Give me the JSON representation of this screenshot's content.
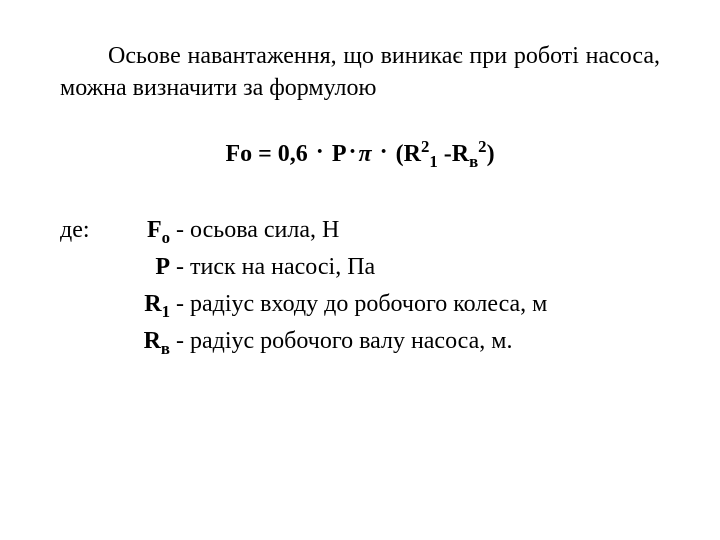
{
  "colors": {
    "background": "#ffffff",
    "text": "#000000"
  },
  "typography": {
    "family": "Times New Roman",
    "body_fontsize_pt": 18,
    "formula_fontsize_pt": 18,
    "formula_weight": "bold"
  },
  "intro": "Осьове навантаження, що виникає при роботі насоса, можна визначити за формулою",
  "formula": {
    "lhs_sym": "Fo",
    "eq": " = ",
    "coef": "0,6",
    "op": " · ",
    "P": "P",
    "pi": "π",
    "open": " (",
    "R_base": "R",
    "R_sup": "2",
    "R_sub": "1",
    "minus": " -",
    "Rv_base": "R",
    "Rv_sub": "в",
    "Rv_sup": "2",
    "close": ")"
  },
  "defs_lead": "де:",
  "defs": [
    {
      "sym_base": "F",
      "sym_sub": "о",
      "text": "- осьова сила, Н"
    },
    {
      "sym_base": "P",
      "sym_sub": "",
      "text": " - тиск на насосі, Па"
    },
    {
      "sym_base": "R",
      "sym_sub": "1",
      "text": " - радіус входу до робочого колеса, м"
    },
    {
      "sym_base": "R",
      "sym_sub": "в",
      "text": " - радіус робочого валу насоса, м."
    }
  ]
}
